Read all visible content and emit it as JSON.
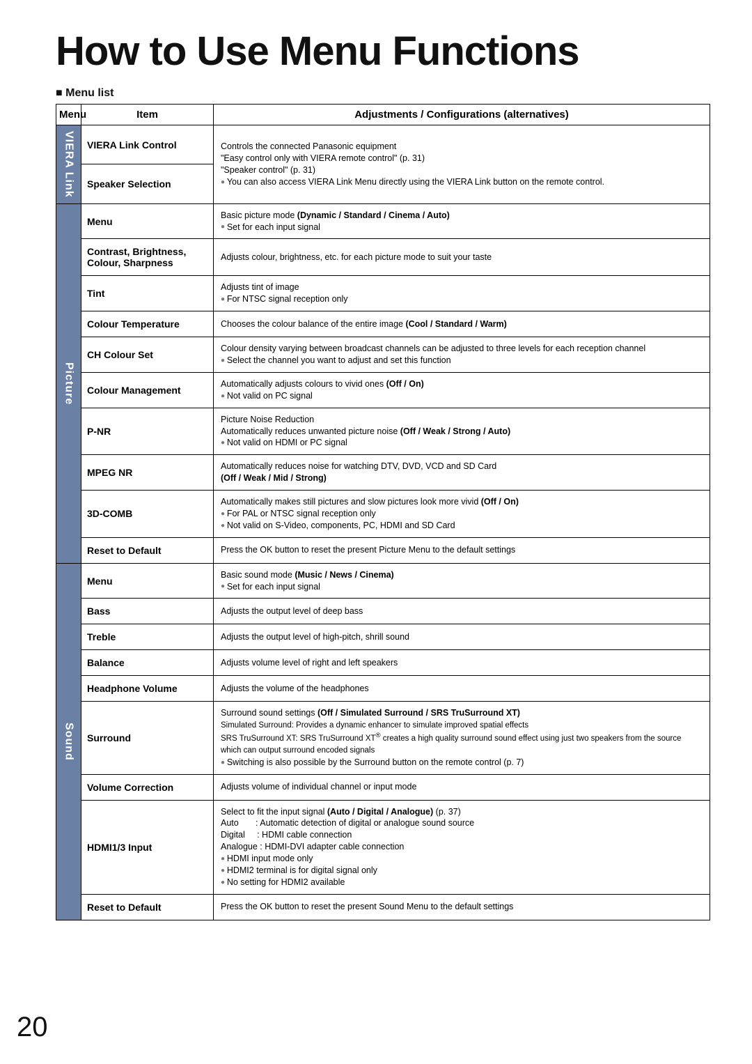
{
  "title": "How to Use Menu Functions",
  "subhead": "Menu list",
  "headers": {
    "menu": "Menu",
    "item": "Item",
    "adj": "Adjustments / Configurations (alternatives)"
  },
  "pageNumber": "20",
  "sections": [
    {
      "menuLabel": "VIERA Link",
      "rows": [
        {
          "item": "VIERA Link Control",
          "adj": "Controls the connected Panasonic equipment<br>\"Easy control only with VIERA remote control\" (p. 31)<br>\"Speaker control\" (p. 31)<br><span class='bullet'></span>You can also access VIERA Link Menu directly using the VIERA Link button on the remote control.",
          "mergeAdjWithNext": true
        },
        {
          "item": "Speaker Selection",
          "adjMergedAbove": true
        }
      ]
    },
    {
      "menuLabel": "Picture",
      "rows": [
        {
          "item": "Menu",
          "adj": "Basic picture mode <b>(Dynamic / Standard / Cinema / Auto)</b><br><span class='bullet'></span>Set for each input signal"
        },
        {
          "item": "Contrast, Brightness, Colour, Sharpness",
          "adj": "Adjusts colour, brightness, etc. for each picture mode to suit your taste"
        },
        {
          "item": "Tint",
          "adj": "Adjusts tint of image<br><span class='bullet'></span>For NTSC signal reception only"
        },
        {
          "item": "Colour Temperature",
          "adj": "Chooses the colour balance of the entire image <b>(Cool / Standard / Warm)</b>"
        },
        {
          "item": "CH Colour Set",
          "adj": "Colour density varying between broadcast channels can be adjusted to three levels for each reception channel<br><span class='bullet'></span>Select the channel you want to adjust and set this function"
        },
        {
          "item": "Colour Management",
          "adj": "Automatically adjusts colours to vivid ones <b>(Off / On)</b><br><span class='bullet'></span>Not valid on PC signal"
        },
        {
          "item": "P-NR",
          "adj": "Picture Noise Reduction<br>Automatically reduces unwanted picture noise <b>(Off / Weak / Strong / Auto)</b><br><span class='bullet'></span>Not valid on HDMI or PC signal"
        },
        {
          "item": "MPEG NR",
          "adj": "Automatically reduces noise for watching DTV, DVD, VCD and SD Card<br><b>(Off / Weak / Mid / Strong)</b>"
        },
        {
          "item": "3D-COMB",
          "adj": "Automatically makes still pictures and slow pictures look more vivid <b>(Off / On)</b><br><span class='bullet'></span>For PAL or NTSC signal reception only<br><span class='bullet'></span>Not valid on S-Video, components, PC, HDMI and SD Card"
        },
        {
          "item": "Reset to Default",
          "adj": "Press the OK button to reset the present Picture Menu to the default settings"
        }
      ]
    },
    {
      "menuLabel": "Sound",
      "rows": [
        {
          "item": "Menu",
          "adj": "Basic sound mode <b>(Music / News / Cinema)</b><br><span class='bullet'></span>Set for each input signal"
        },
        {
          "item": "Bass",
          "adj": "Adjusts the output level of deep bass"
        },
        {
          "item": "Treble",
          "adj": "Adjusts the output level of high-pitch, shrill sound"
        },
        {
          "item": "Balance",
          "adj": "Adjusts volume level of right and left speakers"
        },
        {
          "item": "Headphone Volume",
          "adj": "Adjusts the volume of the headphones"
        },
        {
          "item": "Surround",
          "adj": "Surround sound settings <b>(Off / Simulated Surround / SRS TruSurround XT)</b><br><span style='font-size:11.5px'>Simulated Surround: Provides a dynamic enhancer to simulate improved spatial effects<br>SRS TruSurround XT: SRS TruSurround XT<sup>®</sup> creates a high quality surround sound effect using just two speakers from the source which can output surround encoded signals</span><br><span class='bullet'></span>Switching is also possible by the Surround button on the remote control (p. 7)"
        },
        {
          "item": "Volume Correction",
          "adj": "Adjusts volume of individual channel or input mode"
        },
        {
          "item": "HDMI1/3 Input",
          "adj": "Select to fit the input signal <b>(Auto / Digital / Analogue)</b> (p. 37)<br>Auto&nbsp;&nbsp;&nbsp;&nbsp;&nbsp;&nbsp;&nbsp;: Automatic detection of digital or analogue sound source<br>Digital&nbsp;&nbsp;&nbsp;&nbsp;&nbsp;: HDMI cable connection<br>Analogue : HDMI-DVI adapter cable connection<br><span class='bullet'></span>HDMI input mode only<br><span class='bullet'></span>HDMI2 terminal is for digital signal only<br><span class='bullet'></span>No setting for HDMI2 available"
        },
        {
          "item": "Reset to Default",
          "adj": "Press the OK button to reset the present Sound Menu to the default settings"
        }
      ]
    }
  ]
}
